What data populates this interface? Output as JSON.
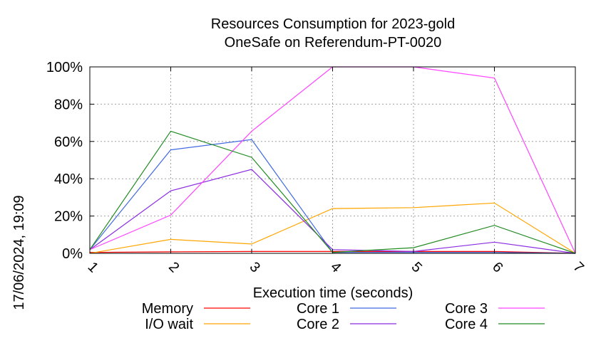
{
  "chart_data": {
    "type": "line",
    "title": [
      "Resources Consumption for 2023-gold",
      "OneSafe on Referendum-PT-0020"
    ],
    "xlabel": "Execution time (seconds)",
    "ylabel": "",
    "side_label": "17/06/2024, 19:09",
    "x": [
      1,
      2,
      3,
      4,
      5,
      6,
      7
    ],
    "x_tick_labels": [
      "1",
      "2",
      "3",
      "4",
      "5",
      "6",
      "7"
    ],
    "xlim": [
      1,
      7
    ],
    "ylim": [
      0,
      100
    ],
    "y_ticks": [
      0,
      20,
      40,
      60,
      80,
      100
    ],
    "y_tick_labels": [
      "0%",
      "20%",
      "40%",
      "60%",
      "80%",
      "100%"
    ],
    "grid": true,
    "legend_position": "bottom",
    "series": [
      {
        "name": "Memory",
        "color": "#ff0000",
        "values": [
          0.5,
          0.8,
          1.0,
          1.0,
          1.0,
          1.0,
          0
        ]
      },
      {
        "name": "I/O wait",
        "color": "#ffa500",
        "values": [
          0,
          7.5,
          5,
          24,
          24.5,
          27,
          0
        ]
      },
      {
        "name": "Core 1",
        "color": "#4169e1",
        "values": [
          2,
          55.5,
          61,
          0.5,
          0.5,
          0.5,
          0
        ]
      },
      {
        "name": "Core 2",
        "color": "#8a2be2",
        "values": [
          2,
          33.5,
          45,
          2,
          1,
          6,
          0
        ]
      },
      {
        "name": "Core 3",
        "color": "#ff44ff",
        "values": [
          2,
          20.5,
          65.5,
          100,
          100,
          94,
          0
        ]
      },
      {
        "name": "Core 4",
        "color": "#228b22",
        "values": [
          2,
          65.5,
          51.5,
          0.5,
          3,
          15,
          0
        ]
      }
    ]
  }
}
